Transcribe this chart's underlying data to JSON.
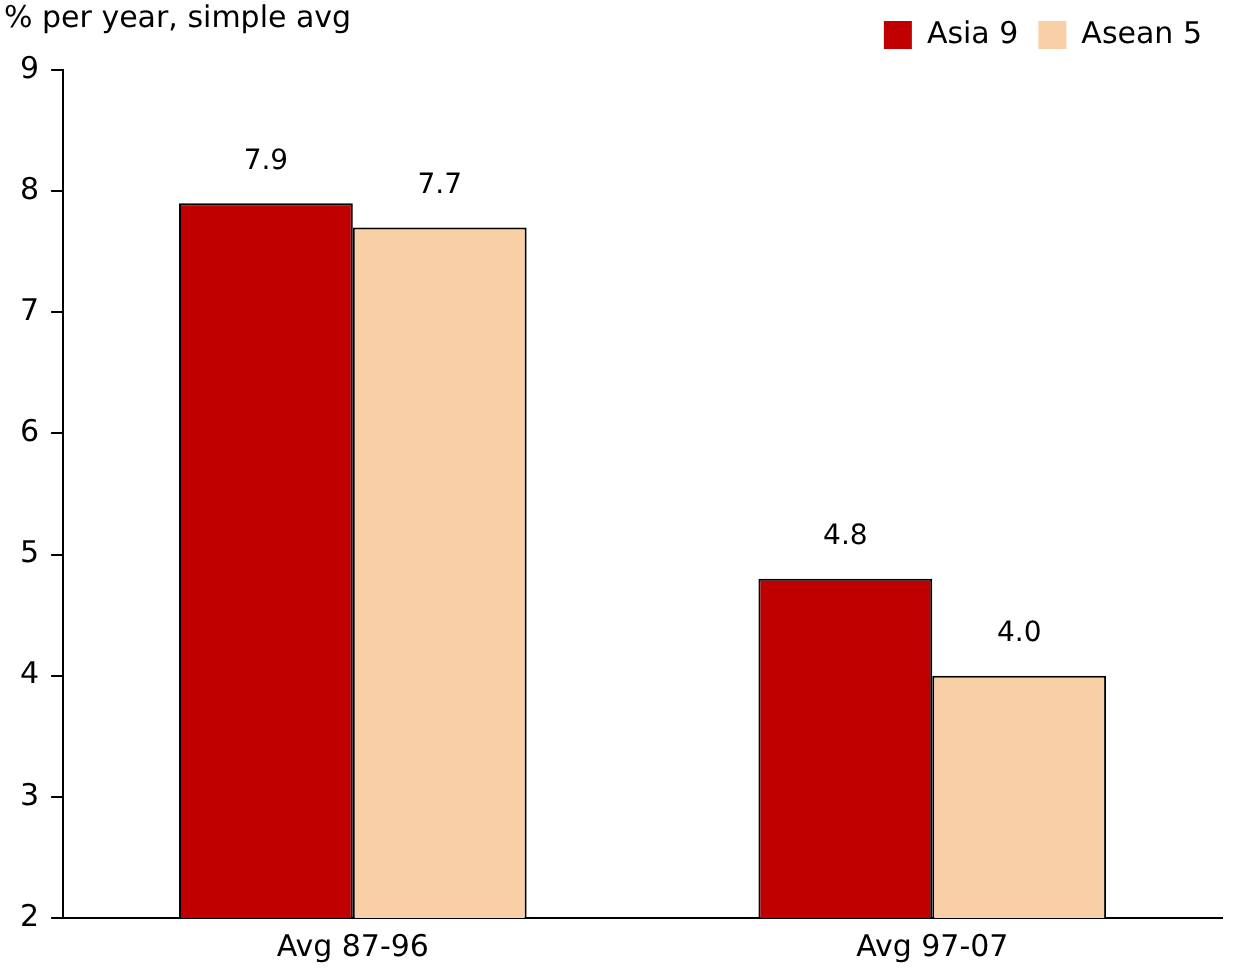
{
  "chart_data": {
    "type": "bar",
    "ylabel": "% per year, simple avg",
    "categories": [
      "Avg 87-96",
      "Avg 97-07"
    ],
    "series": [
      {
        "name": "Asia 9",
        "color": "#c00000",
        "values": [
          7.9,
          4.8
        ],
        "value_labels": [
          "7.9",
          "4.8"
        ]
      },
      {
        "name": "Asean 5",
        "color": "#f9cfa6",
        "values": [
          7.7,
          4.0
        ],
        "value_labels": [
          "7.7",
          "4.0"
        ]
      }
    ],
    "ylim": [
      2,
      9
    ],
    "yticks": [
      2,
      3,
      4,
      5,
      6,
      7,
      8,
      9
    ],
    "grid": false,
    "legend": "top right"
  }
}
